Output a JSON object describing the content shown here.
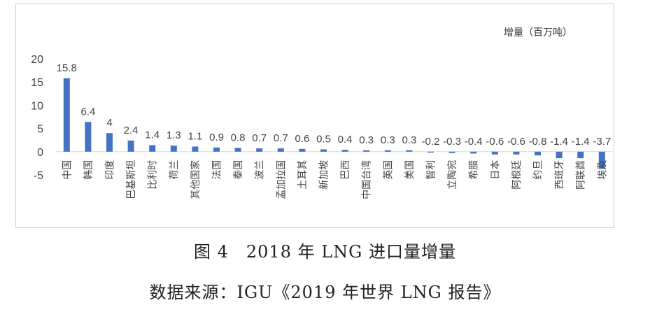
{
  "chart_data": {
    "type": "bar",
    "unit_label": "增量（百万吨）",
    "ylim": [
      -5,
      20
    ],
    "yticks": [
      20,
      15,
      10,
      5,
      0,
      -5
    ],
    "bar_color": "#4472C4",
    "grid": false,
    "categories": [
      "中国",
      "韩国",
      "印度",
      "巴基斯坦",
      "比利时",
      "荷兰",
      "其他国家",
      "法国",
      "泰国",
      "波兰",
      "孟加拉国",
      "土耳其",
      "新加坡",
      "巴西",
      "中国台湾",
      "英国",
      "美国",
      "智利",
      "立陶宛",
      "希腊",
      "日本",
      "阿根廷",
      "约旦",
      "西班牙",
      "阿联酋",
      "埃及"
    ],
    "values": [
      15.8,
      6.4,
      4,
      2.4,
      1.4,
      1.3,
      1.1,
      0.9,
      0.8,
      0.7,
      0.7,
      0.6,
      0.5,
      0.4,
      0.3,
      0.3,
      0.3,
      -0.2,
      -0.3,
      -0.4,
      -0.6,
      -0.6,
      -0.8,
      -1.4,
      -1.4,
      -3.7
    ],
    "value_labels": [
      "15.8",
      "6.4",
      "4",
      "2.4",
      "1.4",
      "1.3",
      "1.1",
      "0.9",
      "0.8",
      "0.7",
      "0.7",
      "0.6",
      "0.5",
      "0.4",
      "0.3",
      "0.3",
      "0.3",
      "-0.2",
      "-0.3",
      "-0.4",
      "-0.6",
      "-0.6",
      "-0.8",
      "-1.4",
      "-1.4",
      "-3.7"
    ]
  },
  "figure": {
    "title": "图 4　2018 年 LNG 进口量增量",
    "source": "数据来源：IGU《2019 年世界 LNG 报告》"
  }
}
